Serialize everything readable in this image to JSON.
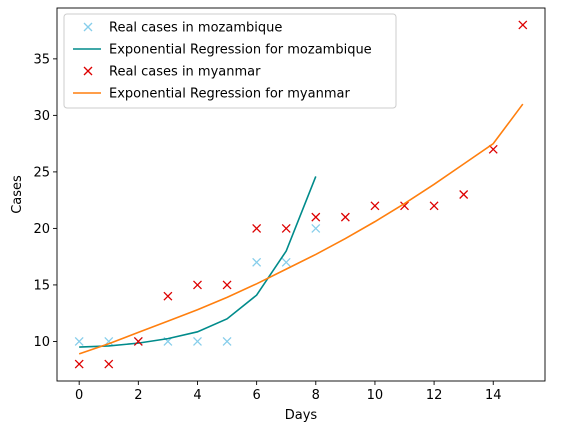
{
  "chart_data": {
    "type": "scatter",
    "title": "",
    "xlabel": "Days",
    "ylabel": "Cases",
    "xlim": [
      -0.75,
      15.75
    ],
    "ylim": [
      6.5,
      39.5
    ],
    "xticks": [
      0,
      2,
      4,
      6,
      8,
      10,
      12,
      14
    ],
    "yticks": [
      10,
      15,
      20,
      25,
      30,
      35
    ],
    "grid": false,
    "legend_position": "top-left",
    "series": [
      {
        "name": "Real cases in mozambique",
        "kind": "marker",
        "marker": "x",
        "color": "#87CEEB",
        "x": [
          0,
          1,
          2,
          3,
          4,
          5,
          6,
          7,
          8
        ],
        "y": [
          10,
          10,
          10,
          10,
          10,
          10,
          17,
          17,
          20
        ]
      },
      {
        "name": "Exponential Regression for mozambique",
        "kind": "line",
        "color": "#008B8B",
        "x": [
          0,
          1,
          2,
          3,
          4,
          5,
          6,
          7,
          8
        ],
        "y": [
          9.5,
          9.6,
          9.85,
          10.25,
          10.85,
          12.0,
          14.1,
          18.0,
          24.6
        ]
      },
      {
        "name": "Real cases in myanmar",
        "kind": "marker",
        "marker": "x",
        "color": "#DD0000",
        "x": [
          0,
          1,
          2,
          3,
          4,
          5,
          6,
          7,
          8,
          9,
          10,
          11,
          12,
          13,
          14,
          15
        ],
        "y": [
          8,
          8,
          10,
          14,
          15,
          15,
          20,
          20,
          21,
          21,
          22,
          22,
          22,
          23,
          27,
          38
        ]
      },
      {
        "name": "Exponential Regression for myanmar",
        "kind": "line",
        "color": "#FF7F0E",
        "x": [
          0,
          1,
          2,
          3,
          4,
          5,
          6,
          7,
          8,
          9,
          10,
          11,
          12,
          13,
          14,
          15
        ],
        "y": [
          8.9,
          9.8,
          10.8,
          11.8,
          12.8,
          13.9,
          15.1,
          16.4,
          17.7,
          19.1,
          20.6,
          22.2,
          23.9,
          25.7,
          27.5,
          31.0
        ]
      }
    ]
  }
}
